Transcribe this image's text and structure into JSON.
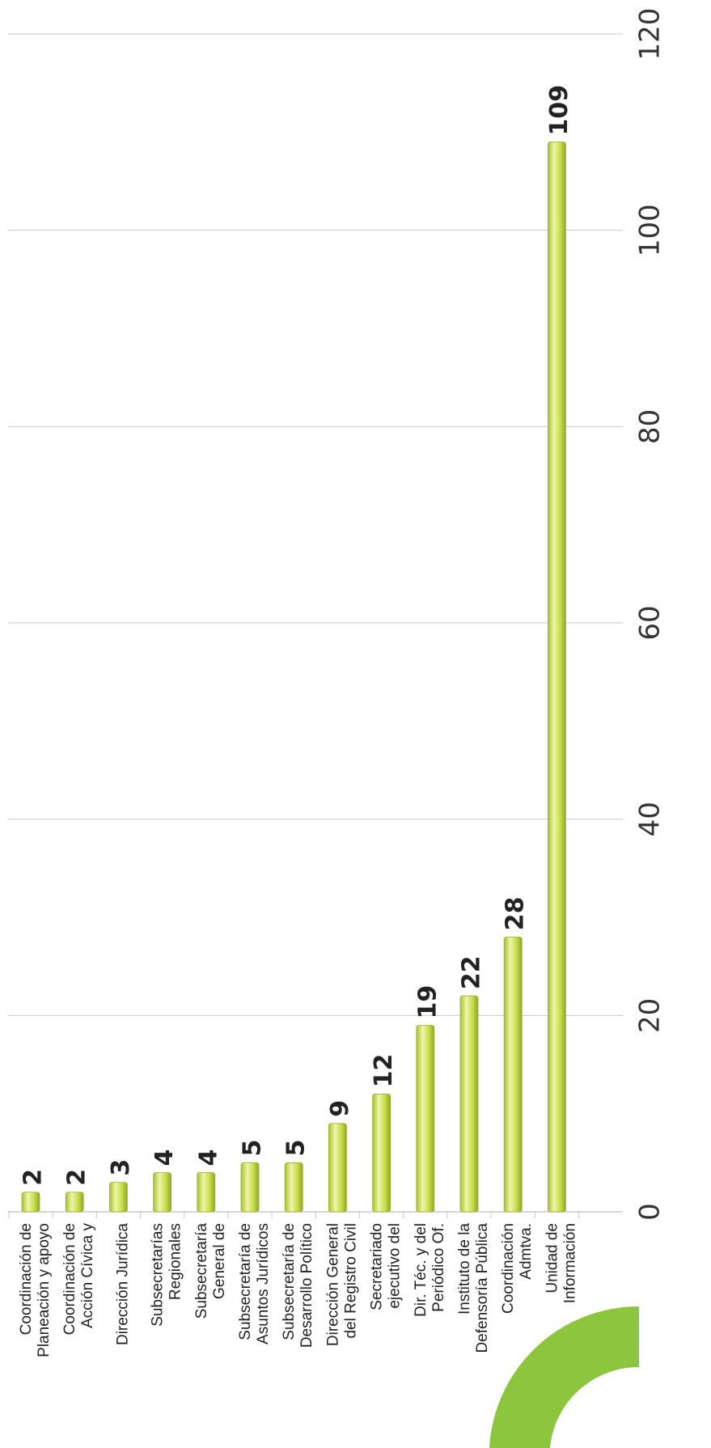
{
  "chart_data": {
    "type": "bar",
    "orientation": "horizontal",
    "categories": [
      [
        "Coordinación de",
        "Planeación y apoyo"
      ],
      [
        "Coordinación de",
        "Acción Cívica y"
      ],
      [
        "Dirección Jurídica"
      ],
      [
        "Subsecretarías",
        "Regionales"
      ],
      [
        "Subsecretaría",
        "General de"
      ],
      [
        "Subsecretaría de",
        "Asuntos Jurídicos"
      ],
      [
        "Subsecretaría de",
        "Desarrollo Político"
      ],
      [
        "Dirección General",
        "del Registro Civil"
      ],
      [
        "Secretariado",
        "ejecutivo del"
      ],
      [
        "Dir. Téc. y del",
        "Periódico Of."
      ],
      [
        "Instituto de la",
        "Defensoría Pública"
      ],
      [
        "Coordinación",
        "Admtva."
      ],
      [
        "Unidad de",
        "Información"
      ]
    ],
    "values": [
      2,
      2,
      3,
      4,
      4,
      5,
      5,
      9,
      12,
      19,
      22,
      28,
      109
    ],
    "data_labels": [
      "2",
      "2",
      "3",
      "4",
      "4",
      "5",
      "5",
      "9",
      "12",
      "19",
      "22",
      "28",
      "109"
    ],
    "xlim": [
      0,
      120
    ],
    "ticks": [
      "0",
      "20",
      "40",
      "60",
      "80",
      "100",
      "120"
    ],
    "grid": true,
    "legend": "none",
    "colors": {
      "bar": "#c8dc4a",
      "bar_highlight": "#eef6a8",
      "bar_shadow": "#8fa52a",
      "grid": "#c8c8c8",
      "decor": "#8cc63f"
    }
  }
}
